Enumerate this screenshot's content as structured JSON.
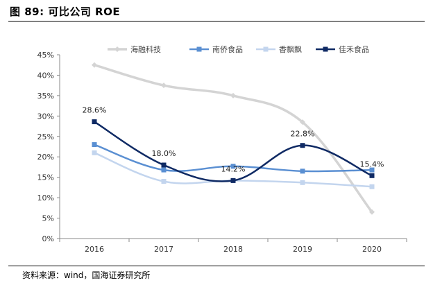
{
  "figure": {
    "title": "图 89:  可比公司 ROE",
    "source": "资料来源：wind，国海证券研究所"
  },
  "chart_data": {
    "type": "line",
    "title": "",
    "xlabel": "",
    "ylabel": "",
    "ylim": [
      0,
      45
    ],
    "yticks": [
      "0%",
      "5%",
      "10%",
      "15%",
      "20%",
      "25%",
      "30%",
      "35%",
      "40%",
      "45%"
    ],
    "x": [
      "2016",
      "2017",
      "2018",
      "2019",
      "2020"
    ],
    "legend_position": "top",
    "grid": false,
    "series": [
      {
        "name": "海融科技",
        "values": [
          42.5,
          37.5,
          35.0,
          28.5,
          6.5
        ],
        "color": "#d4d4d4",
        "marker": "diamond",
        "width": 3.5
      },
      {
        "name": "南侨食品",
        "values": [
          23.0,
          16.8,
          17.7,
          16.5,
          16.8
        ],
        "color": "#5a8fd2",
        "marker": "square",
        "width": 2.5
      },
      {
        "name": "香飘飘",
        "values": [
          21.0,
          14.0,
          14.2,
          13.7,
          12.7
        ],
        "color": "#c3d5ee",
        "marker": "square",
        "width": 2.5
      },
      {
        "name": "佳禾食品",
        "values": [
          28.6,
          18.0,
          14.2,
          22.8,
          15.4
        ],
        "color": "#0f2a64",
        "marker": "square",
        "width": 2.5
      }
    ],
    "data_labels": [
      {
        "series": 3,
        "index": 0,
        "text": "28.6%"
      },
      {
        "series": 3,
        "index": 1,
        "text": "18.0%"
      },
      {
        "series": 3,
        "index": 2,
        "text": "14.2%"
      },
      {
        "series": 3,
        "index": 3,
        "text": "22.8%"
      },
      {
        "series": 3,
        "index": 4,
        "text": "15.4%"
      }
    ]
  }
}
